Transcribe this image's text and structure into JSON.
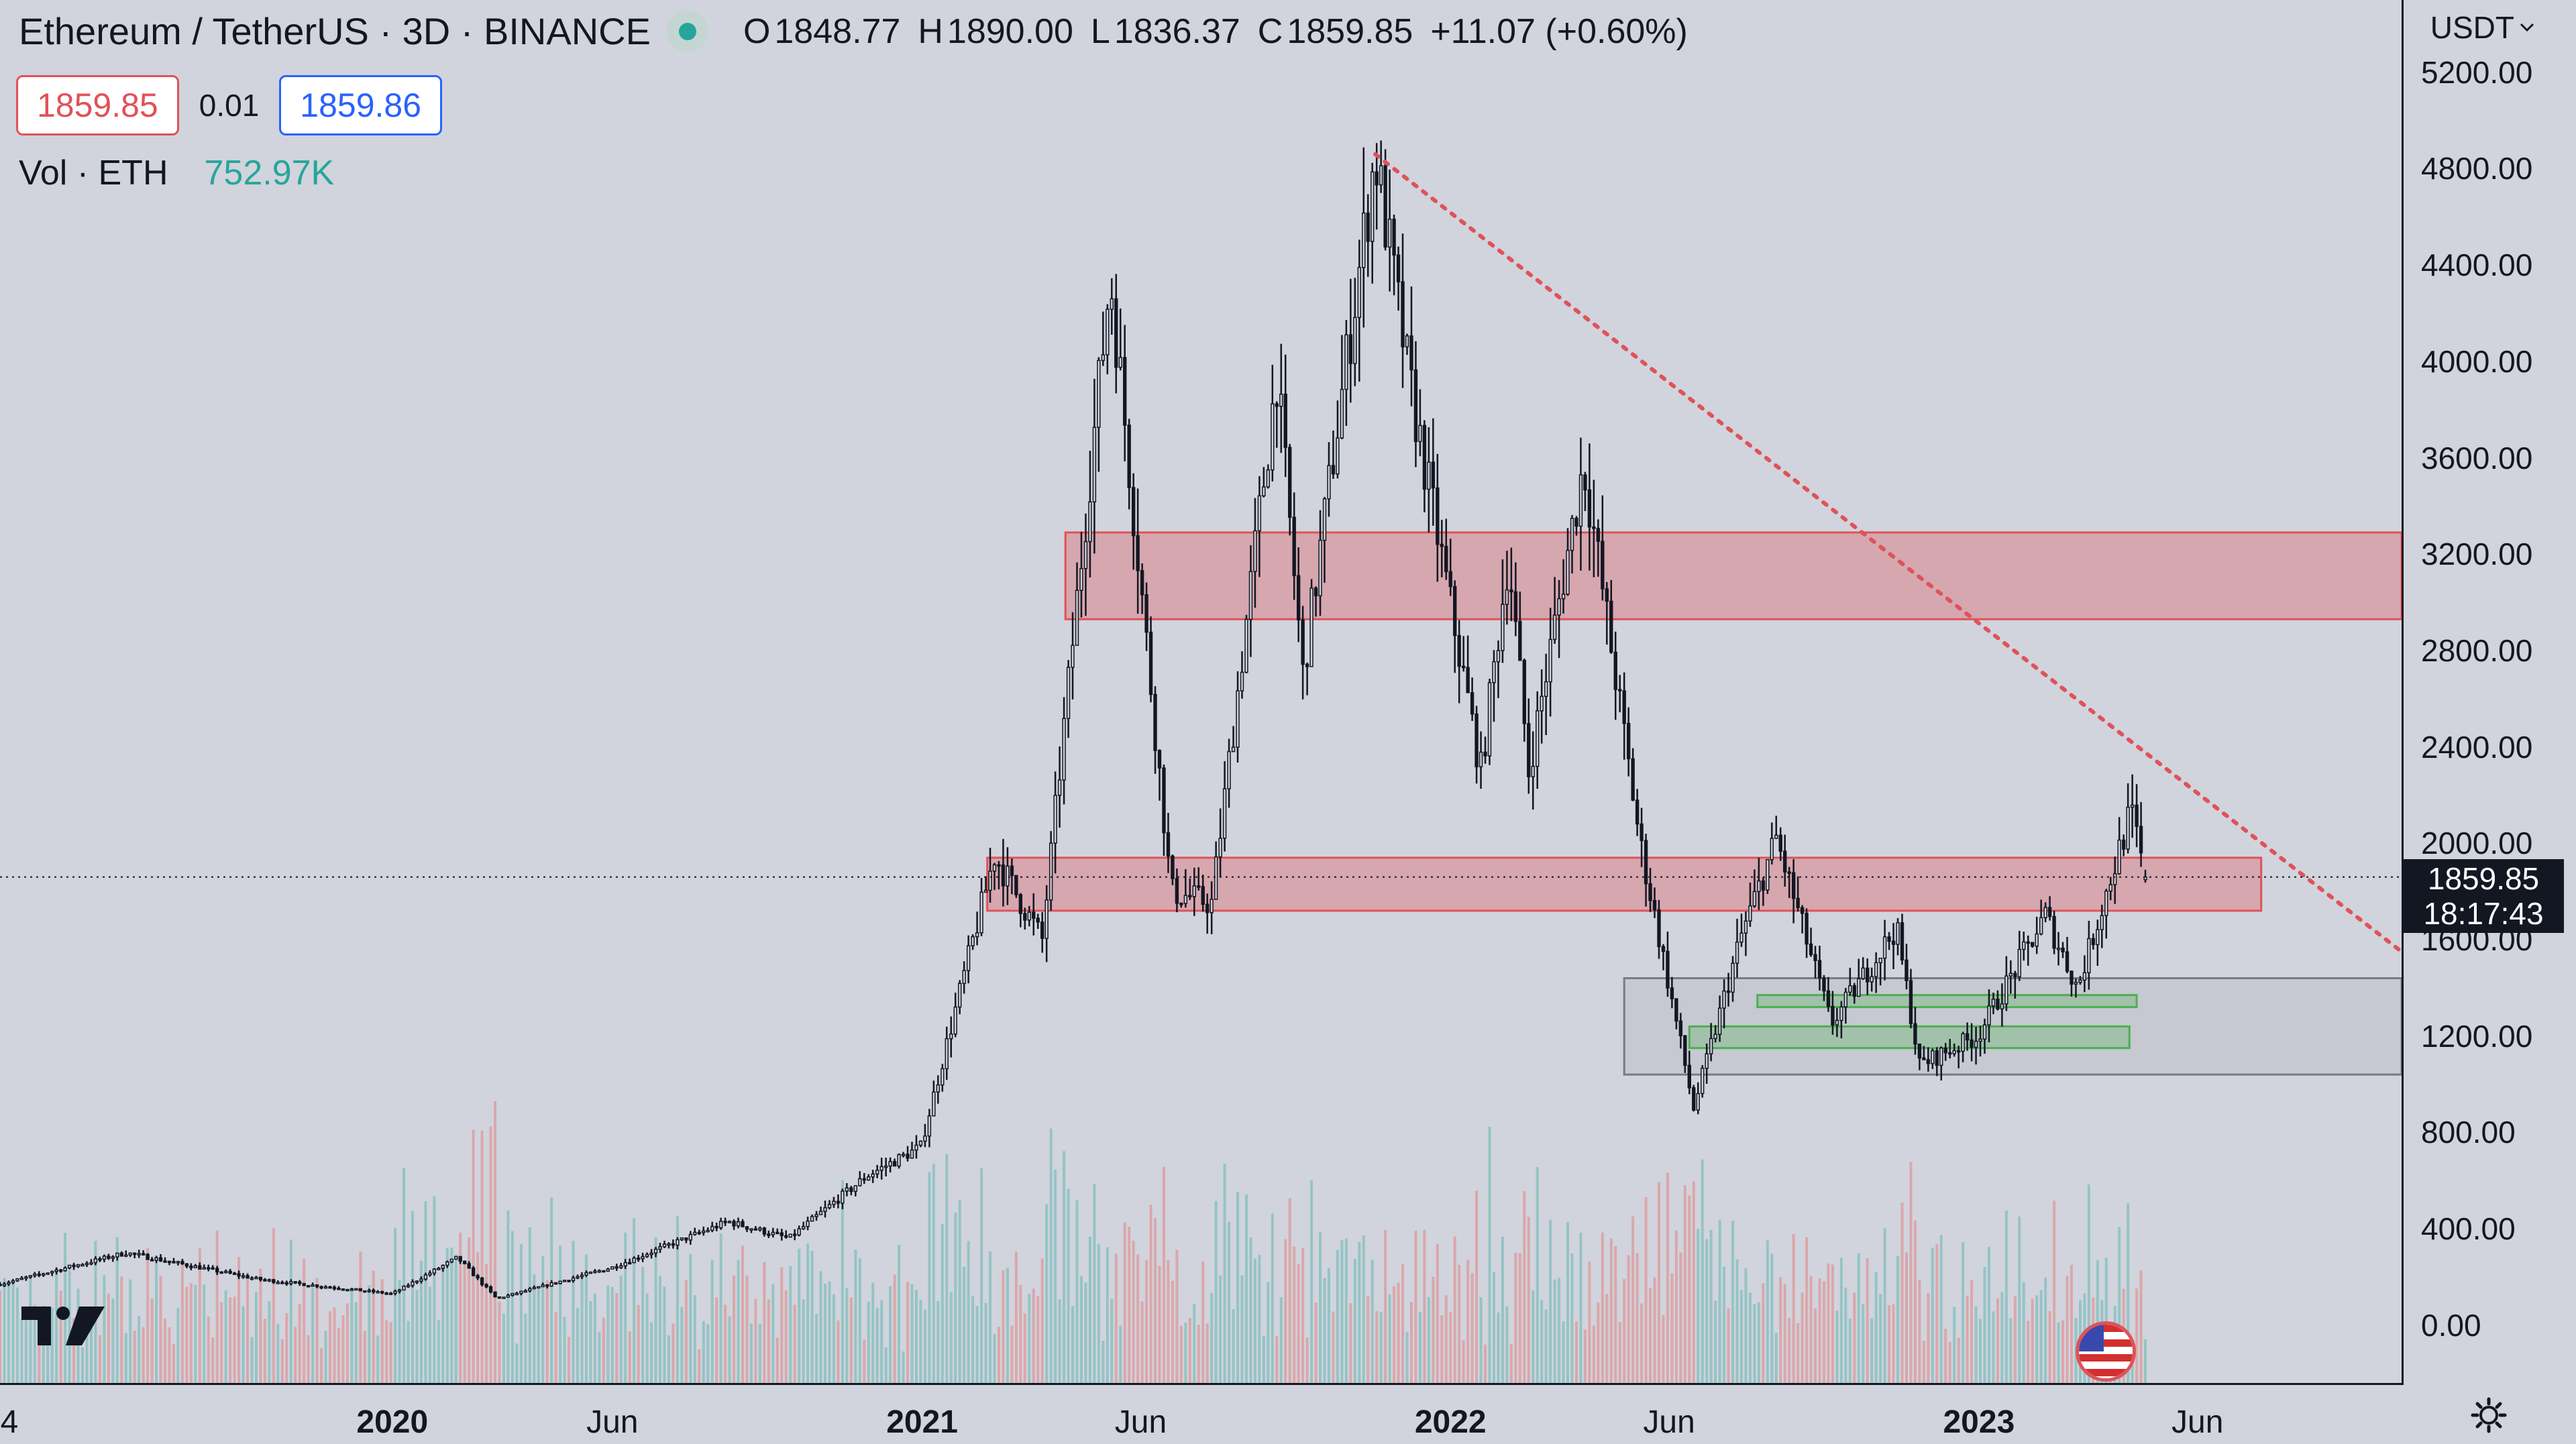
{
  "header": {
    "title": "Ethereum / TetherUS · 3D · BINANCE",
    "ohlc": [
      {
        "k": "O",
        "v": "1848.77"
      },
      {
        "k": "H",
        "v": "1890.00"
      },
      {
        "k": "L",
        "v": "1836.37"
      },
      {
        "k": "C",
        "v": "1859.85"
      }
    ],
    "change": "+11.07 (+0.60%)",
    "sell_price": "1859.85",
    "spread": "0.01",
    "buy_price": "1859.86",
    "volume_label": "Vol · ETH",
    "volume_value": "752.97K"
  },
  "axis": {
    "currency": "USDT",
    "current_price": "1859.85",
    "countdown": "18:17:43"
  },
  "colors": {
    "background": "#d1d4dc",
    "candle": "#131722",
    "resistance_zone": "#e0525a",
    "support_zone": "#4caf50",
    "range_box": "#787b86",
    "volume_up": "#26a69a",
    "volume_down": "#ef5350"
  },
  "icons": {
    "status": "market-open-dot-icon",
    "currency_dropdown": "chevron-down-icon",
    "settings": "gear-icon",
    "logo": "tradingview-logo-icon",
    "flag": "us-flag-icon"
  },
  "chart_data": {
    "type": "candlestick",
    "title": "Ethereum / TetherUS · 3D · BINANCE",
    "y_ticks": [
      "0.00",
      "400.00",
      "800.00",
      "1200.00",
      "1600.00",
      "2000.00",
      "2400.00",
      "2800.00",
      "3200.00",
      "3600.00",
      "4000.00",
      "4400.00",
      "4800.00",
      "5200.00"
    ],
    "y_tick_values": [
      0,
      400,
      800,
      1200,
      1600,
      2000,
      2400,
      2800,
      3200,
      3600,
      4000,
      4400,
      4800,
      5200
    ],
    "ylim": [
      -240,
      5500
    ],
    "xlim": [
      "2019-04-05",
      "2023-10-20"
    ],
    "x_ticks": [
      {
        "label": "4",
        "date": "2019-04-01",
        "year": false
      },
      {
        "label": "2020",
        "date": "2020-01-01",
        "year": true
      },
      {
        "label": "Jun",
        "date": "2020-06-01",
        "year": false
      },
      {
        "label": "2021",
        "date": "2021-01-01",
        "year": true
      },
      {
        "label": "Jun",
        "date": "2021-06-01",
        "year": false
      },
      {
        "label": "2022",
        "date": "2022-01-01",
        "year": true
      },
      {
        "label": "Jun",
        "date": "2022-06-01",
        "year": false
      },
      {
        "label": "2023",
        "date": "2023-01-01",
        "year": true
      },
      {
        "label": "Jun",
        "date": "2023-06-01",
        "year": false
      }
    ],
    "price_anchors": [
      [
        "2019-04-05",
        170
      ],
      [
        "2019-07-01",
        300
      ],
      [
        "2019-10-01",
        190
      ],
      [
        "2020-01-01",
        130
      ],
      [
        "2020-02-15",
        280
      ],
      [
        "2020-03-13",
        110
      ],
      [
        "2020-06-01",
        240
      ],
      [
        "2020-08-20",
        430
      ],
      [
        "2020-10-01",
        360
      ],
      [
        "2020-11-24",
        620
      ],
      [
        "2020-12-31",
        740
      ],
      [
        "2021-02-20",
        1950
      ],
      [
        "2021-03-25",
        1600
      ],
      [
        "2021-05-11",
        4360
      ],
      [
        "2021-06-22",
        1800
      ],
      [
        "2021-07-20",
        1750
      ],
      [
        "2021-09-03",
        3950
      ],
      [
        "2021-09-21",
        2700
      ],
      [
        "2021-11-10",
        4860
      ],
      [
        "2021-12-04",
        3900
      ],
      [
        "2022-01-22",
        2300
      ],
      [
        "2022-02-10",
        3200
      ],
      [
        "2022-02-24",
        2300
      ],
      [
        "2022-04-03",
        3580
      ],
      [
        "2022-05-12",
        2000
      ],
      [
        "2022-06-18",
        900
      ],
      [
        "2022-07-20",
        1600
      ],
      [
        "2022-08-14",
        2020
      ],
      [
        "2022-09-21",
        1250
      ],
      [
        "2022-11-05",
        1650
      ],
      [
        "2022-11-21",
        1080
      ],
      [
        "2022-12-31",
        1200
      ],
      [
        "2023-02-16",
        1700
      ],
      [
        "2023-03-10",
        1400
      ],
      [
        "2023-04-16",
        2130
      ],
      [
        "2023-04-26",
        1859.85
      ]
    ],
    "last_price": 1859.85,
    "all_time_high": {
      "date": "2021-11-10",
      "price": 4868
    },
    "annotations": {
      "resistance_zones": [
        {
          "from": "2021-04-10",
          "to": "2023-10-20",
          "low": 2930,
          "high": 3290
        },
        {
          "from": "2021-02-15",
          "to": "2023-07-15",
          "low": 1720,
          "high": 1940
        }
      ],
      "support_zones": [
        {
          "from": "2022-08-01",
          "to": "2023-04-20",
          "low": 1320,
          "high": 1370
        },
        {
          "from": "2022-06-15",
          "to": "2023-04-15",
          "low": 1150,
          "high": 1240
        }
      ],
      "range_box": {
        "from": "2022-05-01",
        "to": "2023-10-20",
        "low": 1040,
        "high": 1440
      },
      "trendline": {
        "from_date": "2021-11-10",
        "from_price": 4860,
        "to_date": "2023-10-20",
        "to_price": 1550
      },
      "price_line": 1859.85
    }
  }
}
